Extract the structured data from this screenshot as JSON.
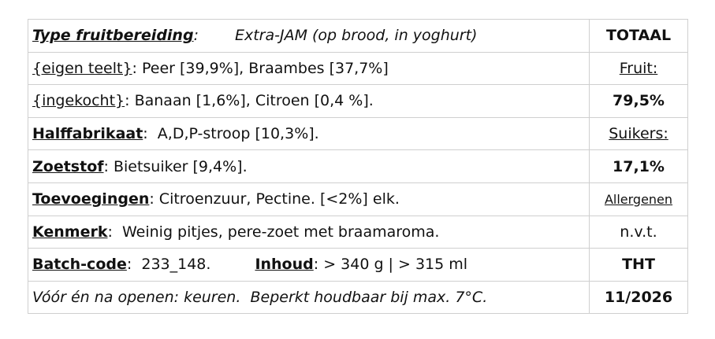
{
  "label": {
    "rows": [
      {
        "left": [
          "Type fruitbereiding",
          ":",
          "Extra-JAM (op brood, in yoghurt)"
        ],
        "right": "TOTAAL"
      },
      {
        "left": [
          "{eigen teelt}",
          ": Peer [39,9%], Braambes [37,7%]"
        ],
        "right": "Fruit:"
      },
      {
        "left": [
          "{ingekocht}",
          ": Banaan [1,6%], Citroen [0,4 %]."
        ],
        "right": "79,5%"
      },
      {
        "left": [
          "Halffabrikaat",
          ":  A,D,P-stroop [10,3%]."
        ],
        "right": "Suikers:"
      },
      {
        "left": [
          "Zoetstof",
          ": Bietsuiker [9,4%]."
        ],
        "right": "17,1%"
      },
      {
        "left": [
          "Toevoegingen",
          ": Citroenzuur, Pectine. [<2%] elk."
        ],
        "right": "Allergenen"
      },
      {
        "left": [
          "Kenmerk",
          ":  Weinig pitjes, pere-zoet met braamaroma."
        ],
        "right": "n.v.t."
      },
      {
        "left": [
          "Batch-code",
          ":  233_148.",
          "Inhoud",
          ": > 340 g | > 315 ml"
        ],
        "right": "THT"
      },
      {
        "left": [
          "Vóór én na openen: keuren.  Beperkt houdbaar bij max. 7°C."
        ],
        "right": "11/2026"
      }
    ]
  }
}
